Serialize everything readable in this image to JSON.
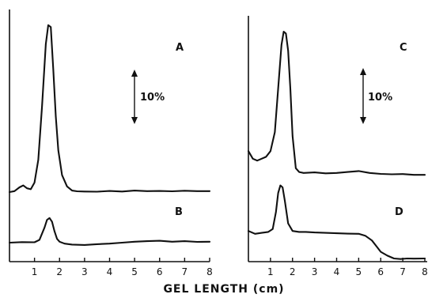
{
  "chart_data": [
    {
      "type": "line",
      "panel": "left",
      "xlim": [
        0,
        8
      ],
      "xticks": [
        "1",
        "2",
        "3",
        "4",
        "5",
        "6",
        "7",
        "8"
      ],
      "scale_bar_label": "10%",
      "series": [
        {
          "name": "A",
          "x": [
            0,
            0.2,
            0.4,
            0.55,
            0.7,
            0.85,
            1.0,
            1.15,
            1.3,
            1.45,
            1.55,
            1.65,
            1.75,
            1.85,
            1.95,
            2.1,
            2.3,
            2.5,
            2.7,
            3.0,
            3.5,
            4.0,
            4.5,
            5.0,
            5.5,
            6.0,
            6.5,
            7.0,
            7.5,
            8.0
          ],
          "y": [
            0,
            0.5,
            2.5,
            3.5,
            2,
            1.5,
            5,
            17,
            45,
            78,
            88,
            87,
            65,
            40,
            22,
            9,
            3,
            0.8,
            0.4,
            0.3,
            0.2,
            0.6,
            0.3,
            0.8,
            0.5,
            0.6,
            0.4,
            0.7,
            0.5,
            0.5
          ]
        },
        {
          "name": "B",
          "x": [
            0,
            0.5,
            1.0,
            1.2,
            1.4,
            1.5,
            1.6,
            1.7,
            1.8,
            1.9,
            2.0,
            2.2,
            2.5,
            3.0,
            3.5,
            4.0,
            4.5,
            5.0,
            5.5,
            6.0,
            6.5,
            7.0,
            7.5,
            8.0
          ],
          "y": [
            0,
            0.3,
            0.2,
            1.5,
            8,
            12,
            13,
            11,
            6,
            2,
            0.5,
            -0.5,
            -1,
            -1.2,
            -0.8,
            -0.5,
            0,
            0.5,
            0.8,
            1,
            0.5,
            0.8,
            0.4,
            0.5
          ]
        }
      ]
    },
    {
      "type": "line",
      "panel": "right",
      "xlim": [
        0,
        8
      ],
      "xticks": [
        "1",
        "2",
        "3",
        "4",
        "5",
        "6",
        "7",
        "8"
      ],
      "scale_bar_label": "10%",
      "series": [
        {
          "name": "C",
          "x": [
            0,
            0.2,
            0.4,
            0.6,
            0.8,
            1.0,
            1.2,
            1.35,
            1.5,
            1.6,
            1.7,
            1.8,
            1.9,
            2.0,
            2.15,
            2.3,
            2.5,
            3.0,
            3.5,
            4.0,
            4.5,
            5.0,
            5.5,
            6.0,
            6.5,
            7.0,
            7.5,
            8.0
          ],
          "y": [
            12,
            8,
            7,
            8,
            9,
            12,
            22,
            45,
            68,
            75,
            74,
            65,
            45,
            20,
            3,
            1,
            0.5,
            0.8,
            0.3,
            0.5,
            1,
            1.5,
            0.5,
            0,
            -0.2,
            -0.1,
            -0.5,
            -0.5
          ]
        },
        {
          "name": "D",
          "x": [
            0,
            0.3,
            0.6,
            0.9,
            1.1,
            1.25,
            1.35,
            1.45,
            1.55,
            1.65,
            1.8,
            2.0,
            2.3,
            2.6,
            3.0,
            3.5,
            4.0,
            4.5,
            5.0,
            5.3,
            5.6,
            5.8,
            6.0,
            6.3,
            6.6,
            6.9,
            7.2,
            7.5,
            8.0
          ],
          "y": [
            2,
            0.5,
            1,
            1.5,
            3,
            12,
            22,
            26,
            25,
            18,
            6,
            2,
            1.5,
            1.5,
            1.2,
            1,
            0.8,
            0.6,
            0.5,
            -0.5,
            -3,
            -6,
            -9,
            -11,
            -12.5,
            -12.8,
            -12.5,
            -12.6,
            -12.5
          ]
        }
      ]
    }
  ],
  "xaxis_title": "GEL LENGTH (cm)"
}
